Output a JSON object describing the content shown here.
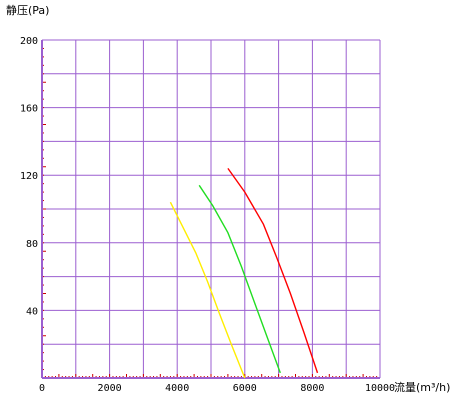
{
  "chart_data": {
    "type": "line",
    "ylabel": "静压(Pa)",
    "xlabel": "流量(m³/h)",
    "xlim": [
      0,
      10000
    ],
    "ylim": [
      0,
      200
    ],
    "x_ticks": [
      0,
      2000,
      4000,
      6000,
      8000,
      10000
    ],
    "y_ticks": [
      40,
      80,
      120,
      160,
      200
    ],
    "grid": true,
    "legend": "none",
    "colors": {
      "grid": "#9b5fd0",
      "axis": "#9b5fd0",
      "minor_ticks": "#cc0000"
    },
    "series": [
      {
        "color": "#ffee00",
        "x": [
          3800,
          4150,
          4550,
          4900,
          5250,
          5600,
          6000
        ],
        "y": [
          104,
          90,
          74,
          57,
          38,
          20,
          0
        ]
      },
      {
        "color": "#22dd22",
        "x": [
          4650,
          5050,
          5500,
          5900,
          6300,
          6700,
          7050
        ],
        "y": [
          114,
          102,
          86,
          66,
          44,
          22,
          3
        ]
      },
      {
        "color": "#ff0000",
        "x": [
          5500,
          6000,
          6550,
          6950,
          7350,
          7750,
          8150
        ],
        "y": [
          124,
          110,
          91,
          71,
          50,
          27,
          3
        ]
      }
    ]
  }
}
